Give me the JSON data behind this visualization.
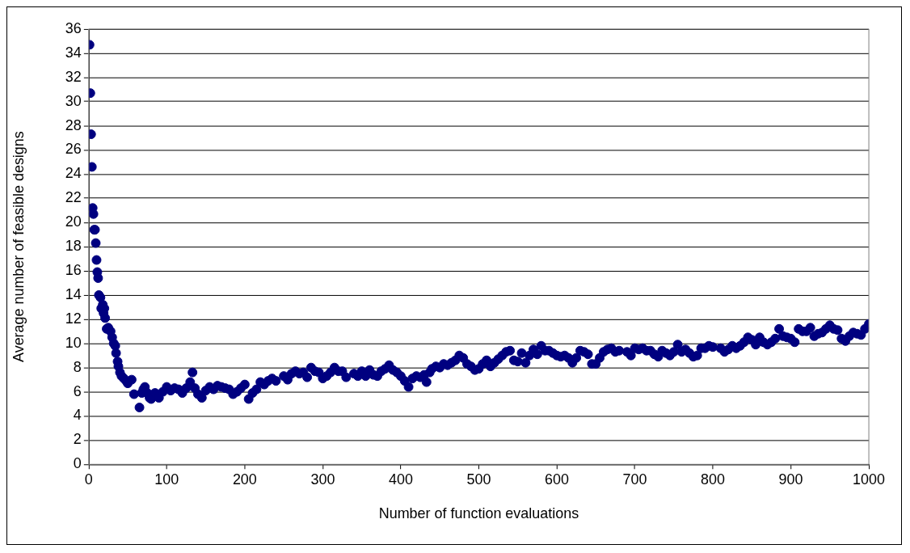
{
  "chart_data": {
    "type": "scatter",
    "xlabel": "Number of function evaluations",
    "ylabel": "Average number of feasible designs",
    "xlim": [
      0,
      1000
    ],
    "xticks": [
      0,
      100,
      200,
      300,
      400,
      500,
      600,
      700,
      800,
      900,
      1000
    ],
    "ylim": [
      0,
      36
    ],
    "yticks": [
      0,
      2,
      4,
      6,
      8,
      10,
      12,
      14,
      16,
      18,
      20,
      22,
      24,
      26,
      28,
      30,
      32,
      34,
      36
    ],
    "grid": "y",
    "marker": "circle",
    "legend": false,
    "series": [
      {
        "color": "#000080",
        "x": [
          1,
          2,
          3,
          4,
          5,
          6,
          7,
          8,
          9,
          10,
          11,
          12,
          13,
          15,
          16,
          18,
          19,
          20,
          21,
          23,
          25,
          28,
          30,
          32,
          34,
          35,
          37,
          38,
          40,
          42,
          45,
          48,
          50,
          55,
          58,
          65,
          68,
          70,
          72,
          75,
          78,
          80,
          85,
          90,
          95,
          100,
          105,
          110,
          115,
          120,
          125,
          130,
          133,
          136,
          140,
          145,
          150,
          155,
          160,
          165,
          170,
          175,
          180,
          185,
          190,
          195,
          200,
          205,
          210,
          215,
          220,
          225,
          230,
          235,
          240,
          250,
          255,
          260,
          265,
          270,
          275,
          280,
          285,
          290,
          295,
          300,
          305,
          310,
          315,
          320,
          325,
          330,
          340,
          345,
          350,
          355,
          360,
          365,
          370,
          375,
          380,
          385,
          390,
          395,
          400,
          405,
          410,
          415,
          420,
          425,
          430,
          433,
          437,
          440,
          445,
          450,
          455,
          460,
          465,
          470,
          475,
          480,
          485,
          490,
          495,
          500,
          505,
          510,
          515,
          520,
          525,
          530,
          535,
          540,
          545,
          550,
          555,
          560,
          565,
          570,
          575,
          580,
          585,
          590,
          595,
          600,
          605,
          610,
          615,
          620,
          625,
          630,
          635,
          640,
          645,
          650,
          655,
          660,
          665,
          670,
          675,
          680,
          690,
          695,
          700,
          705,
          710,
          715,
          720,
          725,
          730,
          735,
          740,
          745,
          750,
          755,
          760,
          765,
          770,
          775,
          780,
          785,
          790,
          795,
          800,
          810,
          815,
          820,
          825,
          830,
          835,
          840,
          845,
          850,
          855,
          860,
          865,
          870,
          875,
          880,
          885,
          890,
          895,
          900,
          905,
          910,
          915,
          920,
          925,
          930,
          935,
          940,
          945,
          950,
          955,
          960,
          965,
          970,
          975,
          980,
          985,
          990,
          995,
          1000
        ],
        "values": [
          34.7,
          30.7,
          27.3,
          24.6,
          21.2,
          20.7,
          19.4,
          19.4,
          18.3,
          16.9,
          15.9,
          15.4,
          14,
          13.8,
          12.9,
          13.2,
          12.5,
          12.9,
          12.1,
          11.2,
          11.3,
          11,
          10.5,
          10,
          9.8,
          9.2,
          8.5,
          8.1,
          7.6,
          7.3,
          7.1,
          6.9,
          6.7,
          7,
          5.8,
          4.7,
          5.9,
          6.2,
          6.4,
          5.9,
          5.5,
          5.4,
          5.9,
          5.5,
          6,
          6.4,
          6.1,
          6.3,
          6.2,
          5.9,
          6.3,
          6.8,
          7.6,
          6.3,
          5.8,
          5.5,
          6.1,
          6.4,
          6.2,
          6.5,
          6.4,
          6.3,
          6.2,
          5.8,
          6,
          6.3,
          6.6,
          5.4,
          5.9,
          6.2,
          6.8,
          6.6,
          6.9,
          7.1,
          6.9,
          7.3,
          7,
          7.5,
          7.7,
          7.5,
          7.6,
          7.2,
          8,
          7.7,
          7.6,
          7.1,
          7.3,
          7.6,
          8,
          7.7,
          7.7,
          7.2,
          7.5,
          7.3,
          7.7,
          7.3,
          7.8,
          7.4,
          7.3,
          7.7,
          7.9,
          8.2,
          7.8,
          7.6,
          7.3,
          6.9,
          6.4,
          7.1,
          7.3,
          7.2,
          7.4,
          6.8,
          7.6,
          7.9,
          8.1,
          8,
          8.3,
          8.2,
          8.4,
          8.6,
          9,
          8.8,
          8.3,
          8.1,
          7.8,
          7.9,
          8.3,
          8.6,
          8.1,
          8.4,
          8.7,
          9,
          9.3,
          9.4,
          8.6,
          8.5,
          9.2,
          8.4,
          9,
          9.5,
          9.1,
          9.8,
          9.4,
          9.4,
          9.2,
          9,
          8.9,
          9,
          8.8,
          8.4,
          8.8,
          9.4,
          9.3,
          9.1,
          8.3,
          8.3,
          8.8,
          9.3,
          9.5,
          9.6,
          9.3,
          9.4,
          9.3,
          9,
          9.6,
          9.5,
          9.6,
          9.4,
          9.4,
          9.1,
          8.9,
          9.4,
          9.2,
          9,
          9.3,
          9.9,
          9.3,
          9.5,
          9.2,
          8.9,
          9,
          9.6,
          9.6,
          9.8,
          9.7,
          9.6,
          9.3,
          9.5,
          9.8,
          9.6,
          9.8,
          10.1,
          10.5,
          10.3,
          9.9,
          10.5,
          10.1,
          9.9,
          10.1,
          10.4,
          11.2,
          10.6,
          10.5,
          10.4,
          10.1,
          11.2,
          11,
          11,
          11.3,
          10.6,
          10.8,
          10.9,
          11.2,
          11.5,
          11.2,
          11.1,
          10.4,
          10.2,
          10.6,
          10.9,
          10.8,
          10.7,
          11.2,
          11.6
        ]
      }
    ]
  }
}
